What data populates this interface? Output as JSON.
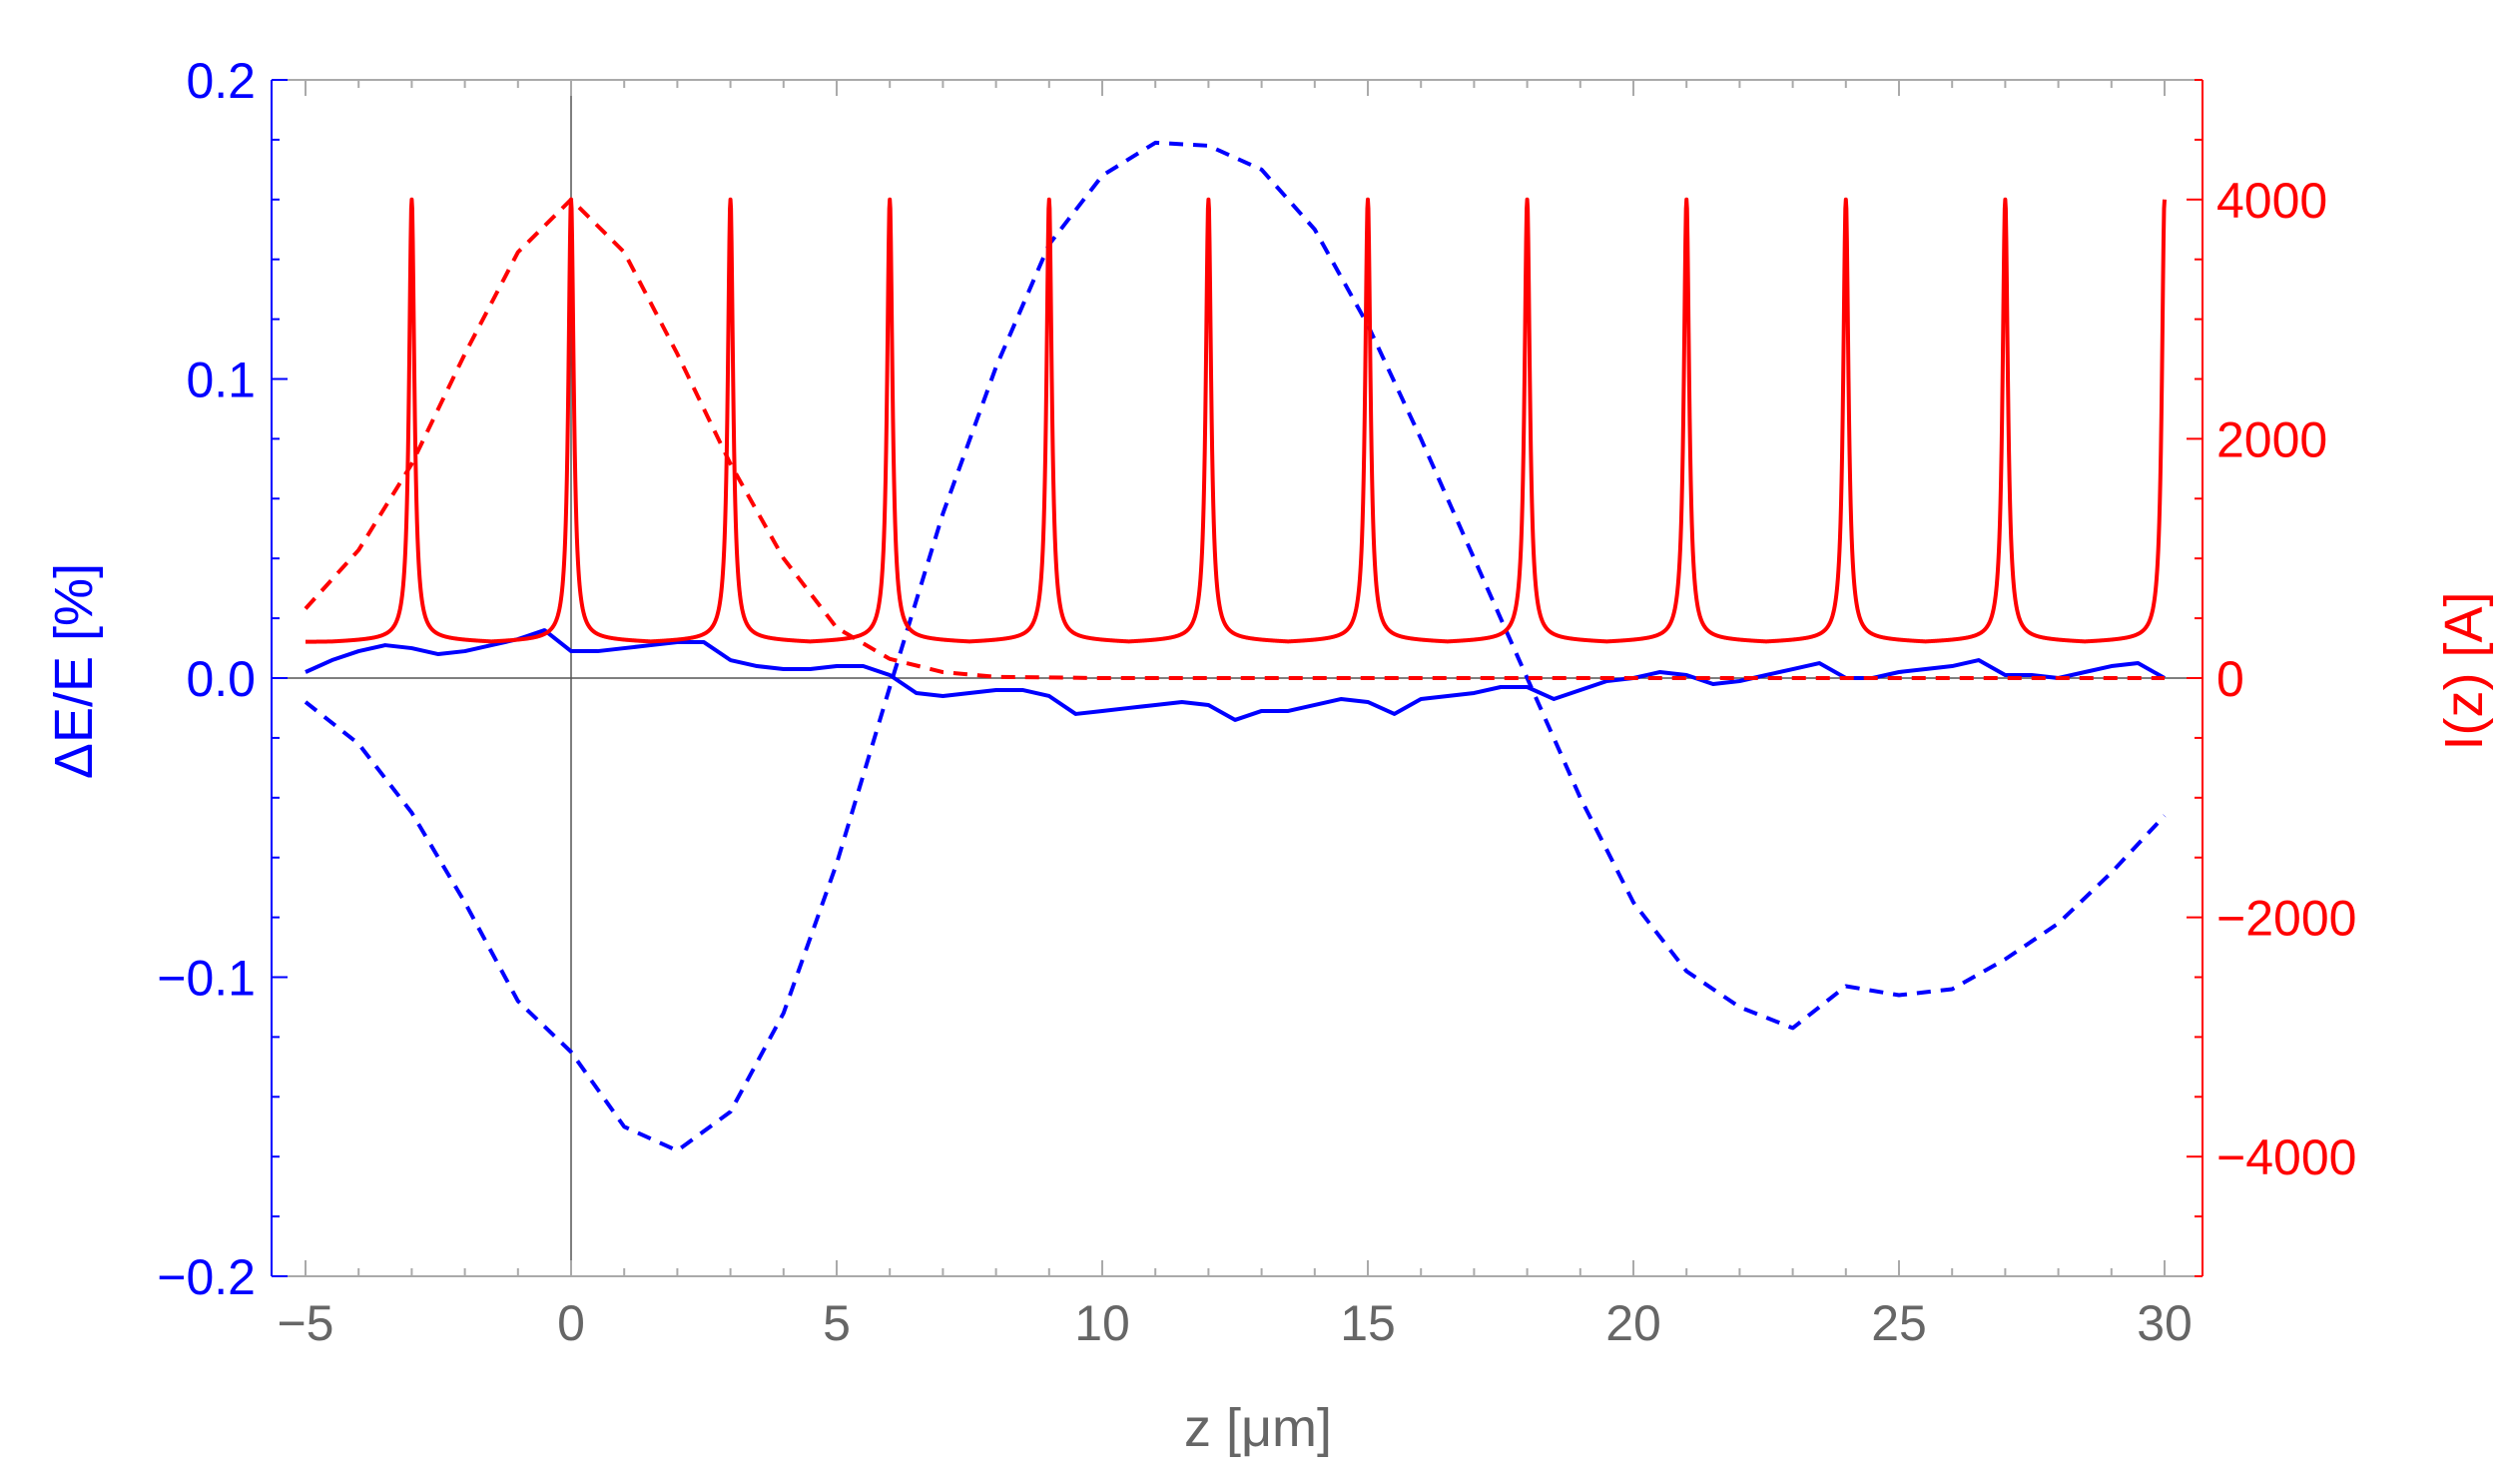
{
  "chart_data": {
    "type": "line",
    "title": "",
    "xlabel": "z [μm]",
    "ylabel_left": "ΔE/E [%]",
    "ylabel_right": "I(z) [A]",
    "xlim": [
      -5,
      30
    ],
    "ylim_left": [
      -0.2,
      0.2
    ],
    "ylim_right": [
      -5000,
      5000
    ],
    "x_ticks": [
      -5,
      0,
      5,
      10,
      15,
      20,
      25,
      30
    ],
    "x_tick_labels": [
      "−5",
      "0",
      "5",
      "10",
      "15",
      "20",
      "25",
      "30"
    ],
    "y_left_ticks": [
      -0.2,
      -0.1,
      0.0,
      0.1,
      0.2
    ],
    "y_left_tick_labels": [
      "−0.2",
      "−0.1",
      "0.0",
      "0.1",
      "0.2"
    ],
    "y_right_ticks": [
      -4000,
      -2000,
      0,
      2000,
      4000
    ],
    "y_right_tick_labels": [
      "−4000",
      "−2000",
      "0",
      "2000",
      "4000"
    ],
    "colors": {
      "left_axis": "#0000ff",
      "right_axis": "#ff0000",
      "frame": "#aaaaaa",
      "tick_text_x": "#666666"
    },
    "series": [
      {
        "axis": "left",
        "color": "#0000ff",
        "style": "solid",
        "x": [
          -5,
          -4.5,
          -4,
          -3.5,
          -3,
          -2.5,
          -2,
          -1.5,
          -1,
          -0.5,
          0,
          0.5,
          1,
          1.5,
          2,
          2.5,
          3,
          3.5,
          4,
          4.5,
          5,
          5.5,
          6,
          6.5,
          7,
          7.5,
          8,
          8.5,
          9,
          9.5,
          10,
          10.5,
          11,
          11.5,
          12,
          12.5,
          13,
          13.5,
          14,
          14.5,
          15,
          15.5,
          16,
          16.5,
          17,
          17.5,
          18,
          18.5,
          19,
          19.5,
          20,
          20.5,
          21,
          21.5,
          22,
          22.5,
          23,
          23.5,
          24,
          24.5,
          25,
          25.5,
          26,
          26.5,
          27,
          27.5,
          28,
          28.5,
          29,
          29.5,
          30
        ],
        "y": [
          0.002,
          0.006,
          0.009,
          0.011,
          0.01,
          0.008,
          0.009,
          0.011,
          0.013,
          0.016,
          0.009,
          0.009,
          0.01,
          0.011,
          0.012,
          0.012,
          0.006,
          0.004,
          0.003,
          0.003,
          0.004,
          0.004,
          0.001,
          -0.005,
          -0.006,
          -0.005,
          -0.004,
          -0.004,
          -0.006,
          -0.012,
          -0.011,
          -0.01,
          -0.009,
          -0.008,
          -0.009,
          -0.014,
          -0.011,
          -0.011,
          -0.009,
          -0.007,
          -0.008,
          -0.012,
          -0.007,
          -0.006,
          -0.005,
          -0.003,
          -0.003,
          -0.007,
          -0.004,
          -0.001,
          0.0,
          0.002,
          0.001,
          -0.002,
          -0.001,
          0.001,
          0.003,
          0.005,
          0.0,
          0.0,
          0.002,
          0.003,
          0.004,
          0.006,
          0.001,
          0.001,
          0.0,
          0.002,
          0.004,
          0.005,
          0.0
        ]
      },
      {
        "axis": "left",
        "color": "#0000ff",
        "style": "dashed",
        "x": [
          -5,
          -4,
          -3,
          -2,
          -1,
          0,
          1,
          2,
          3,
          4,
          5,
          6,
          7,
          8,
          9,
          10,
          11,
          12,
          13,
          14,
          15,
          16,
          17,
          18,
          19,
          20,
          21,
          22,
          23,
          24,
          25,
          26,
          27,
          28,
          29,
          30
        ],
        "y": [
          -0.008,
          -0.022,
          -0.045,
          -0.075,
          -0.108,
          -0.125,
          -0.15,
          -0.158,
          -0.145,
          -0.112,
          -0.062,
          -0.003,
          0.055,
          0.104,
          0.145,
          0.168,
          0.179,
          0.178,
          0.17,
          0.15,
          0.118,
          0.08,
          0.04,
          0.0,
          -0.04,
          -0.075,
          -0.098,
          -0.11,
          -0.117,
          -0.103,
          -0.106,
          -0.104,
          -0.094,
          -0.082,
          -0.065,
          -0.046
        ]
      },
      {
        "axis": "right",
        "color": "#ff0000",
        "style": "solid",
        "period": 3,
        "peak_positions": [
          -3,
          0,
          3,
          6,
          9,
          12,
          15,
          18,
          21,
          24,
          27,
          30
        ],
        "peak_current": 4000,
        "baseline_current": 300,
        "x": [
          -5,
          -4,
          -3.5,
          -3.2,
          -3,
          -2.8,
          -2.5,
          -2,
          -1.5,
          -1,
          -0.5,
          -0.2,
          0,
          0.2,
          0.5,
          1,
          1.5,
          2,
          3,
          4.5,
          6,
          7.5,
          9,
          10.5,
          12,
          13.5,
          15,
          16.5,
          18,
          19.5,
          21,
          22.5,
          24,
          25.5,
          27,
          28.5,
          30
        ],
        "y": [
          300,
          370,
          560,
          1300,
          4000,
          1300,
          560,
          360,
          310,
          360,
          560,
          1300,
          4000,
          1300,
          560,
          360,
          300,
          360,
          4000,
          300,
          4000,
          300,
          4000,
          300,
          4000,
          300,
          4000,
          300,
          4000,
          300,
          4000,
          300,
          4000,
          300,
          4000,
          300,
          4000
        ]
      },
      {
        "axis": "right",
        "color": "#ff0000",
        "style": "dashed",
        "x": [
          -5,
          -4,
          -3,
          -2,
          -1,
          0,
          1,
          2,
          3,
          4,
          5,
          6,
          7,
          8,
          10,
          15,
          20,
          25,
          30
        ],
        "y": [
          580,
          1070,
          1790,
          2710,
          3560,
          4000,
          3560,
          2710,
          1790,
          1000,
          420,
          160,
          50,
          10,
          0,
          0,
          0,
          0,
          0
        ]
      }
    ],
    "reference_lines": [
      "z=0",
      "ΔE/E=0"
    ],
    "grid": false,
    "legend": "none"
  }
}
